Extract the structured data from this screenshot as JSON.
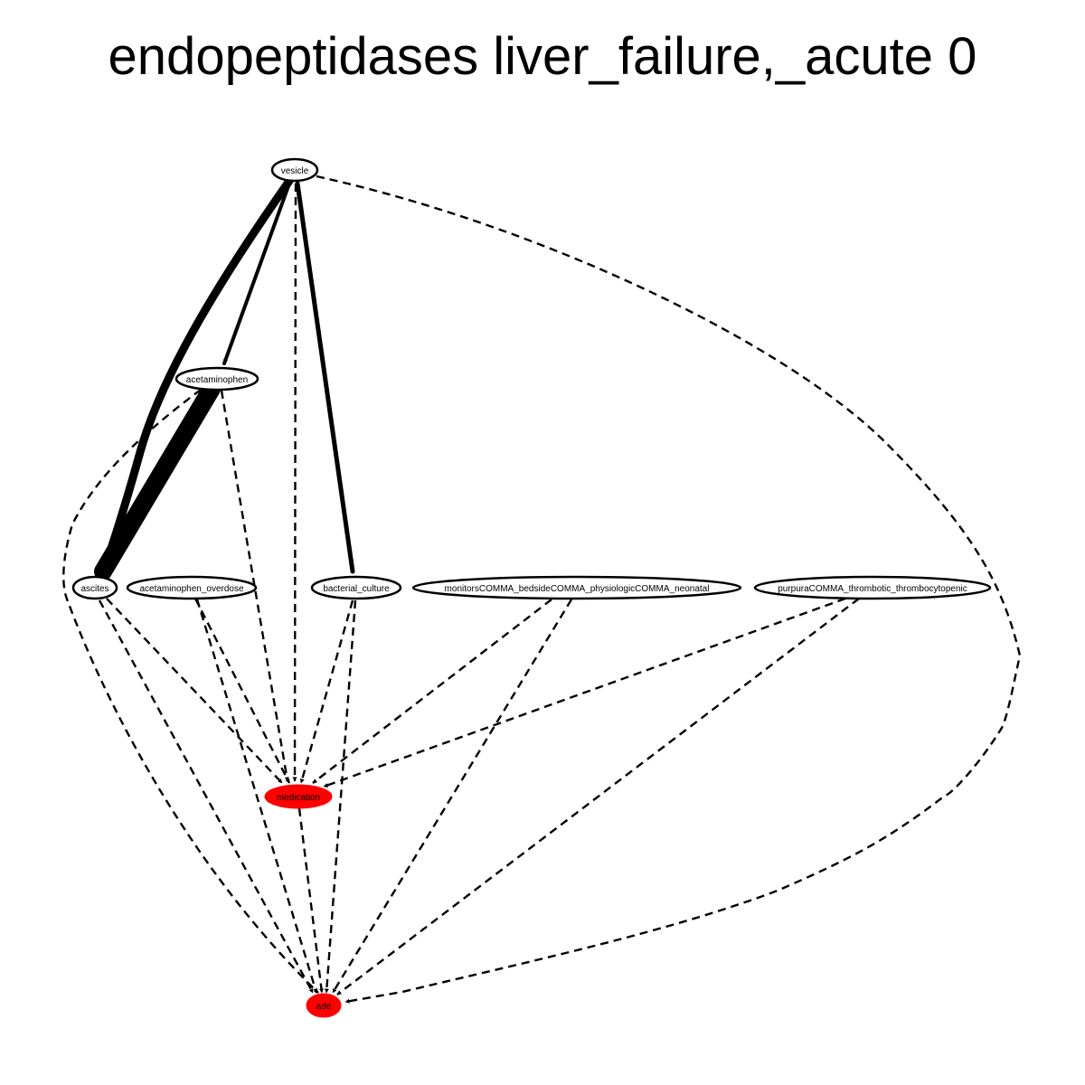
{
  "title": "endopeptidases liver_failure,_acute 0",
  "colors": {
    "highlight": "#ff0000",
    "default_fill": "#ffffff",
    "stroke": "#000000"
  },
  "nodes": [
    {
      "id": "vesicle",
      "label": "vesicle",
      "highlighted": false
    },
    {
      "id": "acetaminophen",
      "label": "acetaminophen",
      "highlighted": false
    },
    {
      "id": "ascites",
      "label": "ascites",
      "highlighted": false
    },
    {
      "id": "acetaminophen_overdose",
      "label": "acetaminophen_overdose",
      "highlighted": false
    },
    {
      "id": "bacterial_culture",
      "label": "bacterial_culture",
      "highlighted": false
    },
    {
      "id": "monitors",
      "label": "monitorsCOMMA_bedsideCOMMA_physiologicCOMMA_neonatal",
      "highlighted": false
    },
    {
      "id": "purpura",
      "label": "purpuraCOMMA_thrombotic_thrombocytopenic",
      "highlighted": false
    },
    {
      "id": "medication",
      "label": "medication",
      "highlighted": true
    },
    {
      "id": "ade",
      "label": "ade",
      "highlighted": true
    }
  ],
  "edges": [
    {
      "from": "vesicle",
      "to": "ascites",
      "style": "solid"
    },
    {
      "from": "vesicle",
      "to": "acetaminophen",
      "style": "solid"
    },
    {
      "from": "vesicle",
      "to": "bacterial_culture",
      "style": "solid"
    },
    {
      "from": "vesicle",
      "to": "medication",
      "style": "dashed"
    },
    {
      "from": "vesicle",
      "to": "ade",
      "style": "dashed"
    },
    {
      "from": "acetaminophen",
      "to": "ascites",
      "style": "solid"
    },
    {
      "from": "acetaminophen",
      "to": "medication",
      "style": "dashed"
    },
    {
      "from": "acetaminophen",
      "to": "ade",
      "style": "dashed"
    },
    {
      "from": "ascites",
      "to": "medication",
      "style": "dashed"
    },
    {
      "from": "ascites",
      "to": "ade",
      "style": "dashed"
    },
    {
      "from": "acetaminophen_overdose",
      "to": "medication",
      "style": "dashed"
    },
    {
      "from": "acetaminophen_overdose",
      "to": "ade",
      "style": "dashed"
    },
    {
      "from": "bacterial_culture",
      "to": "medication",
      "style": "dashed"
    },
    {
      "from": "bacterial_culture",
      "to": "ade",
      "style": "dashed"
    },
    {
      "from": "monitors",
      "to": "medication",
      "style": "dashed"
    },
    {
      "from": "monitors",
      "to": "ade",
      "style": "dashed"
    },
    {
      "from": "purpura",
      "to": "medication",
      "style": "dashed"
    },
    {
      "from": "purpura",
      "to": "ade",
      "style": "dashed"
    },
    {
      "from": "medication",
      "to": "ade",
      "style": "dashed"
    }
  ]
}
